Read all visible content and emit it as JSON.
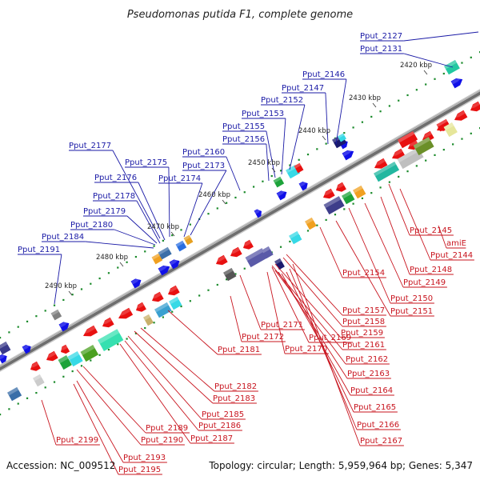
{
  "title": "Pseudomonas putida F1, complete genome",
  "footer": {
    "accession": "Accession: NC_009512",
    "summary": "Topology: circular; Length: 5,959,964 bp; Genes: 5,347"
  },
  "colors": {
    "forward_label": "#1a1aa6",
    "reverse_label": "#c8141e",
    "forward_gene": "#1010e8",
    "reverse_gene": "#e81010",
    "backbone": "#808080",
    "tick_dot": "#1a8a2a"
  },
  "ticks": [
    "2420 kbp",
    "2430 kbp",
    "2440 kbp",
    "2450 kbp",
    "2460 kbp",
    "2470 kbp",
    "2480 kbp",
    "2490 kbp"
  ],
  "top_labels": [
    "Pput_2127",
    "Pput_2131",
    "Pput_2146",
    "Pput_2147",
    "Pput_2152",
    "Pput_2153",
    "Pput_2155",
    "Pput_2156",
    "Pput_2160",
    "Pput_2173",
    "Pput_2174",
    "Pput_2175",
    "Pput_2176",
    "Pput_2177",
    "Pput_2178",
    "Pput_2179",
    "Pput_2180",
    "Pput_2184",
    "Pput_2191"
  ],
  "bottom_labels": [
    "Pput_2145",
    "amiE",
    "Pput_2144",
    "Pput_2148",
    "Pput_2149",
    "Pput_2154",
    "Pput_2150",
    "Pput_2151",
    "Pput_2157",
    "Pput_2158",
    "Pput_2159",
    "Pput_2171",
    "Pput_2172",
    "Pput_2169",
    "Pput_2170",
    "Pput_2161",
    "Pput_2162",
    "Pput_2163",
    "Pput_2164",
    "Pput_2165",
    "Pput_2166",
    "Pput_2167",
    "Pput_2181",
    "Pput_2182",
    "Pput_2183",
    "Pput_2185",
    "Pput_2186",
    "Pput_2187",
    "Pput_2189",
    "Pput_2190",
    "Pput_2199",
    "Pput_2193",
    "Pput_2195"
  ]
}
